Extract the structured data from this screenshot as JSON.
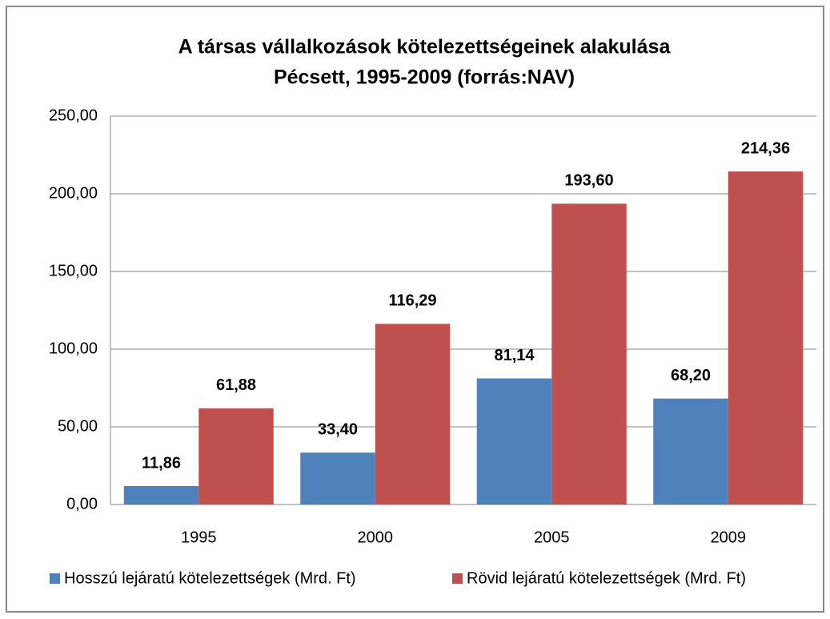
{
  "chart_data": {
    "type": "bar",
    "title": [
      "A társas vállalkozások kötelezettségeinek alakulása",
      "Pécsett, 1995-2009 (forrás:NAV)"
    ],
    "categories": [
      "1995",
      "2000",
      "2005",
      "2009"
    ],
    "series": [
      {
        "name": "Hosszú lejáratú kötelezettségek (Mrd. Ft)",
        "color": "#4f81bd",
        "values": [
          11.86,
          33.4,
          81.14,
          68.2
        ],
        "value_labels": [
          "11,86",
          "33,40",
          "81,14",
          "68,20"
        ]
      },
      {
        "name": "Rövid lejáratú kötelezettségek (Mrd. Ft)",
        "color": "#c0504d",
        "values": [
          61.88,
          116.29,
          193.6,
          214.36
        ],
        "value_labels": [
          "61,88",
          "116,29",
          "193,60",
          "214,36"
        ]
      }
    ],
    "ylim": [
      0,
      250
    ],
    "yticks": [
      {
        "value": 0,
        "label": "0,00"
      },
      {
        "value": 50,
        "label": "50,00"
      },
      {
        "value": 100,
        "label": "100,00"
      },
      {
        "value": 150,
        "label": "150,00"
      },
      {
        "value": 200,
        "label": "200,00"
      },
      {
        "value": 250,
        "label": "250,00"
      }
    ],
    "grid": true,
    "legend": "bottom"
  }
}
